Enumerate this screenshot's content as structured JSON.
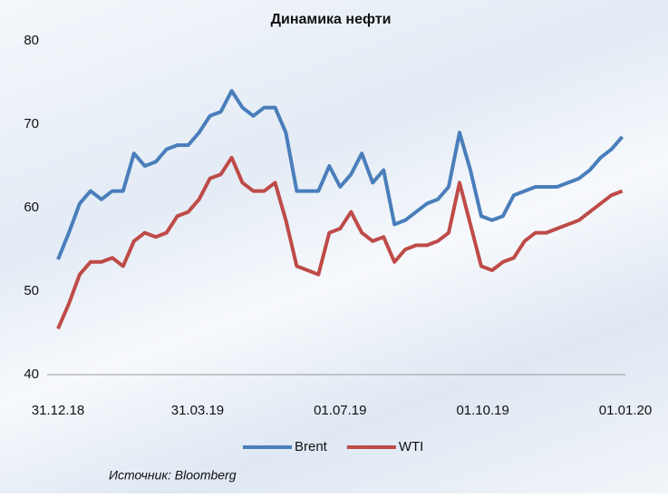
{
  "chart_data": {
    "type": "line",
    "title": "Динамика нефти",
    "x": [
      "2018-12-31",
      "2019-01-07",
      "2019-01-14",
      "2019-01-21",
      "2019-01-28",
      "2019-02-04",
      "2019-02-11",
      "2019-02-18",
      "2019-02-25",
      "2019-03-04",
      "2019-03-11",
      "2019-03-18",
      "2019-03-25",
      "2019-04-01",
      "2019-04-08",
      "2019-04-15",
      "2019-04-22",
      "2019-04-29",
      "2019-05-06",
      "2019-05-13",
      "2019-05-20",
      "2019-05-27",
      "2019-06-03",
      "2019-06-10",
      "2019-06-17",
      "2019-06-24",
      "2019-07-01",
      "2019-07-08",
      "2019-07-15",
      "2019-07-22",
      "2019-07-29",
      "2019-08-05",
      "2019-08-12",
      "2019-08-19",
      "2019-08-26",
      "2019-09-02",
      "2019-09-09",
      "2019-09-16",
      "2019-09-23",
      "2019-09-30",
      "2019-10-07",
      "2019-10-14",
      "2019-10-21",
      "2019-10-28",
      "2019-11-04",
      "2019-11-11",
      "2019-11-18",
      "2019-11-25",
      "2019-12-02",
      "2019-12-09",
      "2019-12-16",
      "2019-12-23",
      "2019-12-30"
    ],
    "series": [
      {
        "name": "Brent",
        "color": "#4a7ebb",
        "values": [
          53.8,
          57,
          60.5,
          62,
          61,
          62,
          62,
          66.5,
          65,
          65.5,
          67,
          67.5,
          67.5,
          69,
          71,
          71.5,
          74,
          72,
          71,
          72,
          72,
          69,
          62,
          62,
          62,
          65,
          62.5,
          64,
          66.5,
          63,
          64.5,
          58,
          58.5,
          59.5,
          60.5,
          61,
          62.5,
          69,
          64.5,
          59,
          58.5,
          59,
          61.5,
          62,
          62.5,
          62.5,
          62.5,
          63,
          63.5,
          64.5,
          66,
          67,
          68.5
        ]
      },
      {
        "name": "WTI",
        "color": "#be4b48",
        "values": [
          45.5,
          48.5,
          52,
          53.5,
          53.5,
          54,
          53,
          56,
          57,
          56.5,
          57,
          59,
          59.5,
          61,
          63.5,
          64,
          66,
          63,
          62,
          62,
          63,
          58.5,
          53,
          52.5,
          52,
          57,
          57.5,
          59.5,
          57,
          56,
          56.5,
          53.5,
          55,
          55.5,
          55.5,
          56,
          57,
          63,
          58,
          53,
          52.5,
          53.5,
          54,
          56,
          57,
          57,
          57.5,
          58,
          58.5,
          59.5,
          60.5,
          61.5,
          62
        ]
      }
    ],
    "xlim": [
      "2018-12-31",
      "2020-01-01"
    ],
    "xticks": [
      {
        "value": "2018-12-31",
        "label": "31.12.18"
      },
      {
        "value": "2019-03-31",
        "label": "31.03.19"
      },
      {
        "value": "2019-07-01",
        "label": "01.07.19"
      },
      {
        "value": "2019-10-01",
        "label": "01.10.19"
      },
      {
        "value": "2020-01-01",
        "label": "01.01.20"
      }
    ],
    "ylim": [
      40,
      80
    ],
    "yticks": [
      40,
      50,
      60,
      70,
      80
    ],
    "grid": false,
    "legend": "bottom",
    "source": "Источник: Bloomberg"
  }
}
